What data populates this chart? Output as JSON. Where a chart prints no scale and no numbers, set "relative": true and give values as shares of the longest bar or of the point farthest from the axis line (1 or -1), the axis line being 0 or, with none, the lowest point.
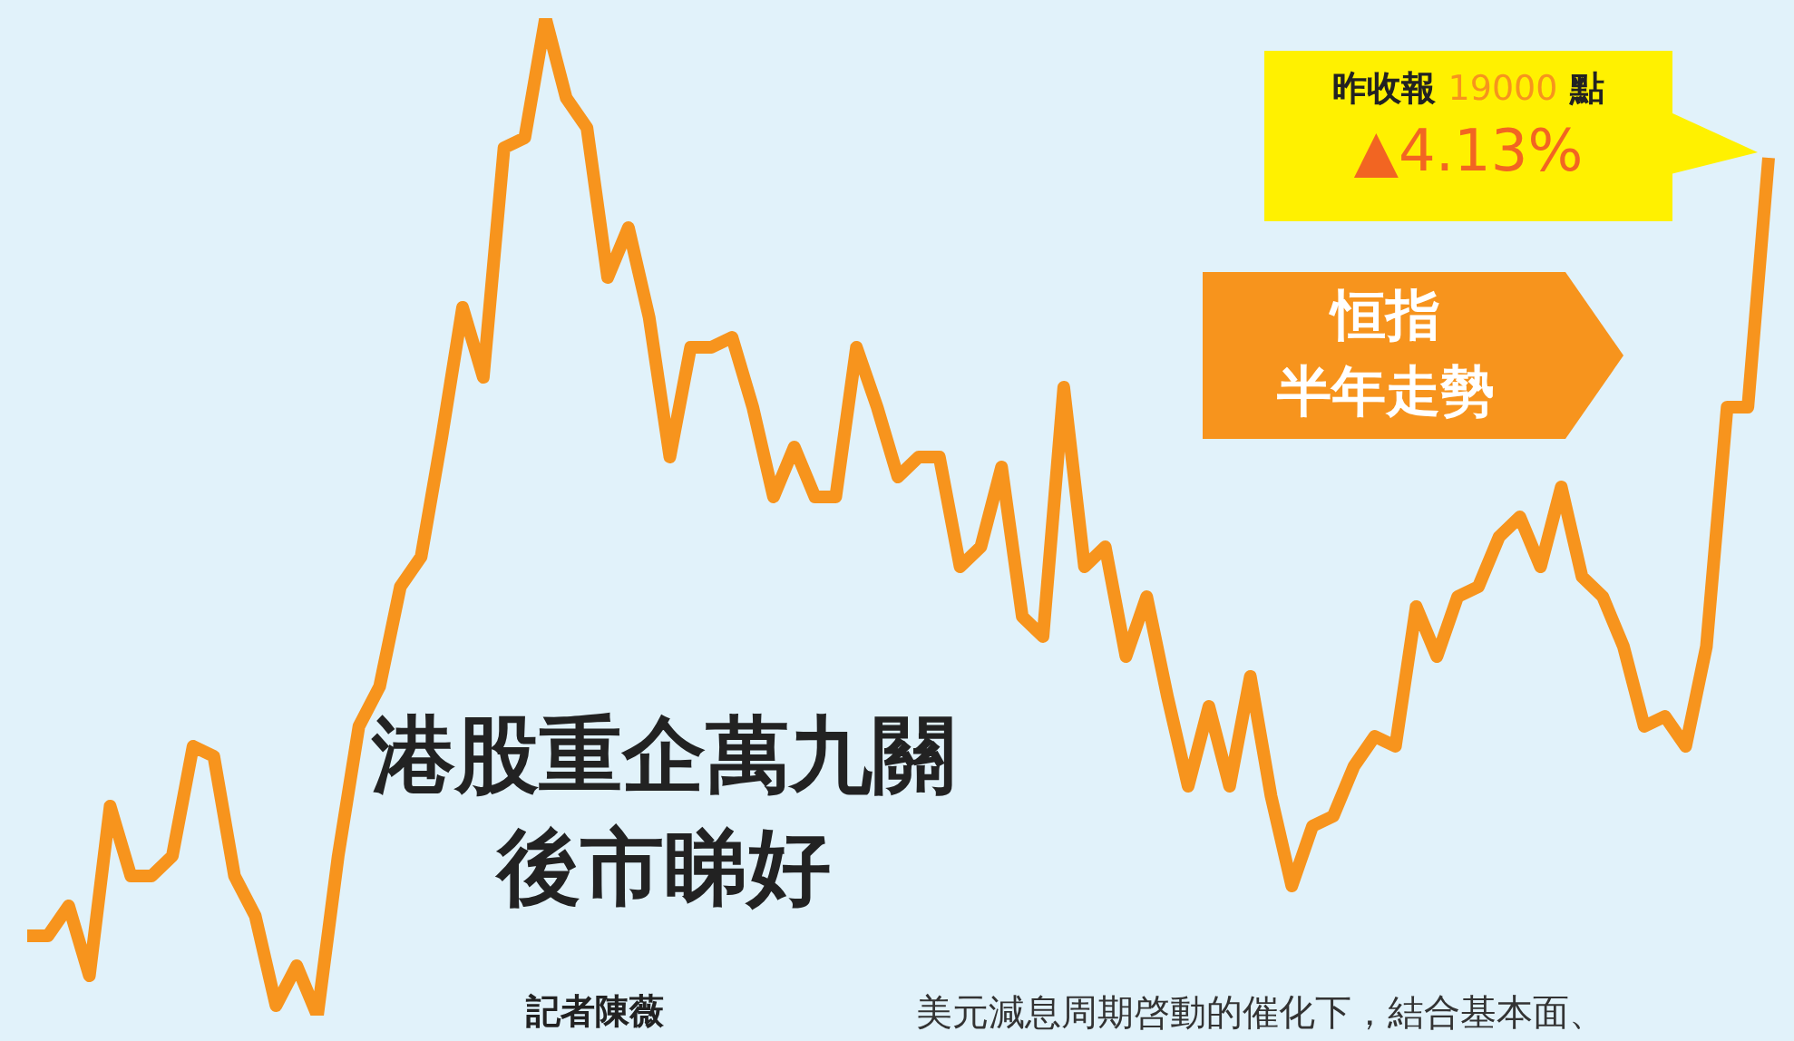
{
  "chart_data": {
    "type": "line",
    "relative": true,
    "title": "港股重企萬九關",
    "subtitle": "後市睇好",
    "categories": [
      null,
      null,
      null,
      null,
      null,
      null,
      null,
      null,
      null,
      null,
      null,
      null,
      null,
      null,
      null,
      null,
      null,
      null,
      null,
      null,
      null,
      null,
      null,
      null,
      null,
      null,
      null,
      null,
      null,
      null,
      null,
      null,
      null,
      null,
      null,
      null,
      null,
      null,
      null,
      null,
      null,
      null,
      null,
      null,
      null,
      null,
      null,
      null,
      null,
      null,
      null,
      null,
      null,
      null,
      null,
      null,
      null,
      null,
      null,
      null,
      null,
      null,
      null,
      null,
      null,
      null,
      null,
      null,
      null,
      null,
      null,
      null,
      null,
      null,
      null,
      null,
      null,
      null,
      null,
      null,
      null,
      null,
      null,
      null,
      null
    ],
    "series": [
      {
        "color": "#f7941d",
        "values": [
          0.08,
          0.08,
          0.11,
          0.04,
          0.21,
          0.14,
          0.14,
          0.16,
          0.27,
          0.26,
          0.14,
          0.1,
          0.01,
          0.05,
          0,
          0.16,
          0.29,
          0.33,
          0.43,
          0.46,
          0.58,
          0.71,
          0.64,
          0.87,
          0.88,
          1,
          0.92,
          0.89,
          0.74,
          0.79,
          0.7,
          0.56,
          0.67,
          0.67,
          0.68,
          0.61,
          0.52,
          0.57,
          0.52,
          0.52,
          0.67,
          0.61,
          0.54,
          0.56,
          0.56,
          0.45,
          0.47,
          0.55,
          0.4,
          0.38,
          0.63,
          0.45,
          0.47,
          0.36,
          0.42,
          0.32,
          0.23,
          0.31,
          0.23,
          0.34,
          0.22,
          0.13,
          0.19,
          0.2,
          0.25,
          0.28,
          0.27,
          0.41,
          0.36,
          0.42,
          0.43,
          0.48,
          0.5,
          0.45,
          0.53,
          0.44,
          0.42,
          0.37,
          0.29,
          0.3,
          0.27,
          0.37,
          0.61,
          0.61,
          0.86
        ]
      }
    ],
    "annotations": [
      "昨收報 19000 點",
      "▲4.13%",
      "恒指",
      "半年走勢",
      "記者陳薇",
      "美元減息周期啓動的催化下，結合基本面、"
    ]
  }
}
